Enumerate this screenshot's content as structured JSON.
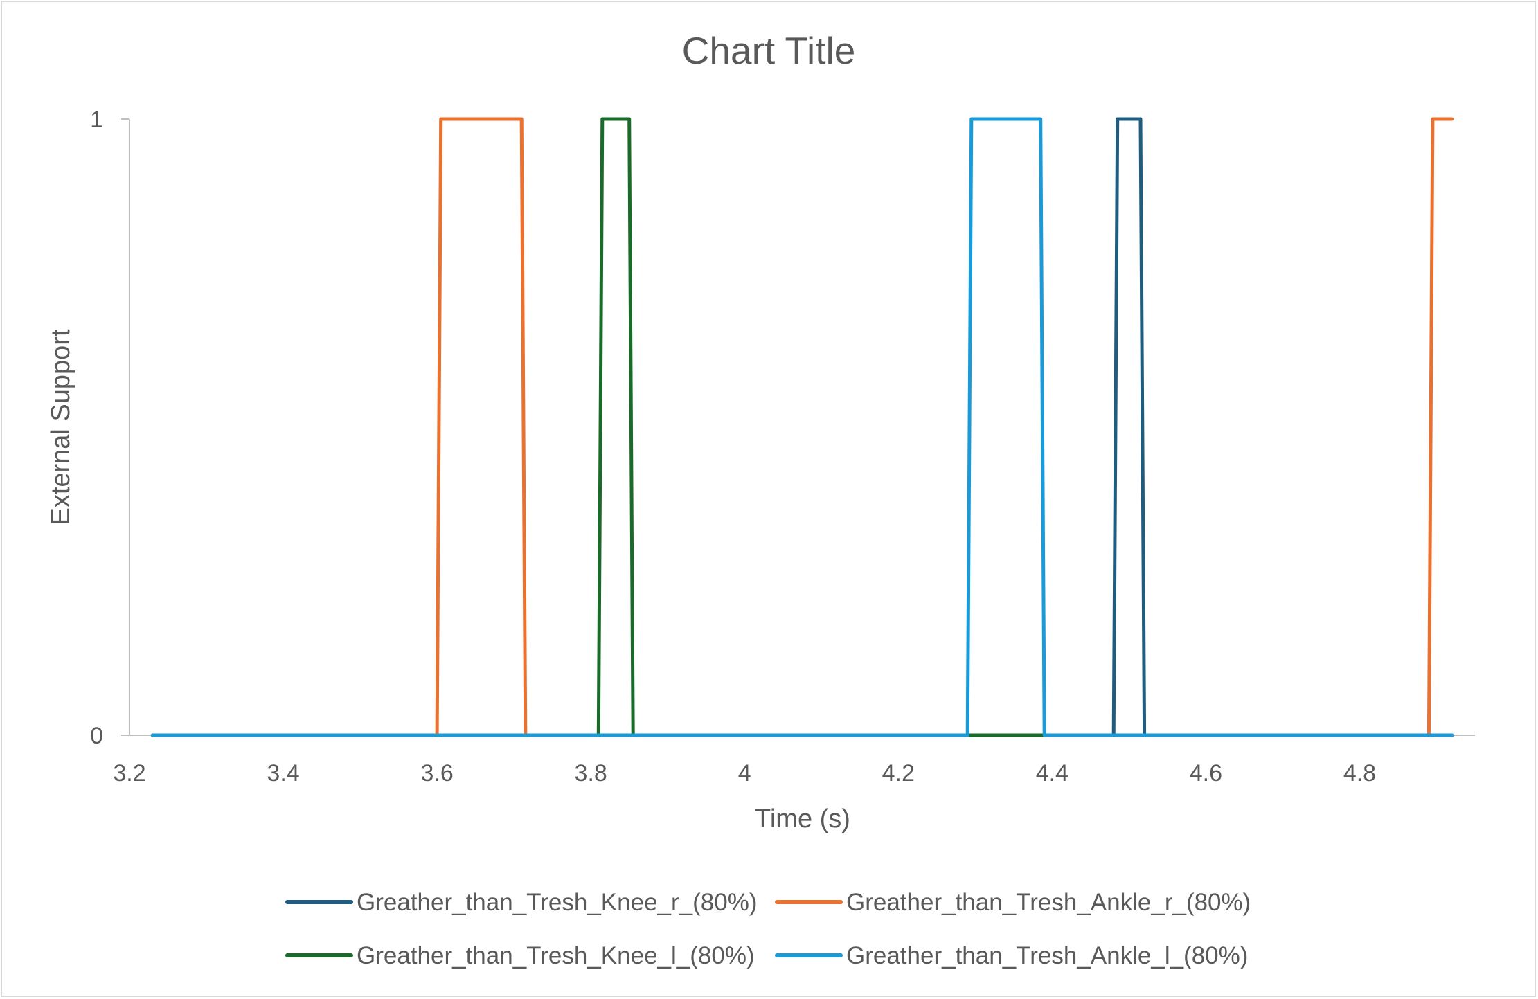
{
  "chart_data": {
    "type": "line",
    "title": "Chart Title",
    "xlabel": "Time (s)",
    "ylabel": "External Support",
    "xlim": [
      3.2,
      4.95
    ],
    "ylim": [
      0,
      1
    ],
    "x_ticks": [
      "3.2",
      "3.4",
      "3.6",
      "3.8",
      "4",
      "4.2",
      "4.4",
      "4.6",
      "4.8"
    ],
    "y_ticks": [
      "0",
      "1"
    ],
    "grid": false,
    "legend_position": "bottom",
    "series": [
      {
        "name": "Greather_than_Tresh_Knee_r_(80%)",
        "color": "#1f5c7e",
        "x": [
          3.23,
          4.48,
          4.485,
          4.515,
          4.52,
          4.92
        ],
        "y": [
          0,
          0,
          1,
          1,
          0,
          0
        ]
      },
      {
        "name": "Greather_than_Tresh_Ankle_r_(80%)",
        "color": "#e97132",
        "x": [
          3.23,
          3.6,
          3.605,
          3.71,
          3.715,
          4.89,
          4.895,
          4.92
        ],
        "y": [
          0,
          0,
          1,
          1,
          0,
          0,
          1,
          1
        ]
      },
      {
        "name": "Greather_than_Tresh_Knee_l_(80%)",
        "color": "#1a6b2a",
        "x": [
          3.23,
          3.81,
          3.815,
          3.85,
          3.855,
          4.29,
          4.39,
          4.92
        ],
        "y": [
          0,
          0,
          1,
          1,
          0,
          0,
          0,
          0
        ]
      },
      {
        "name": "Greather_than_Tresh_Ankle_l_(80%)",
        "color": "#1a9ad6",
        "x": [
          3.23,
          4.29,
          4.295,
          4.385,
          4.39,
          4.92
        ],
        "y": [
          0,
          0,
          1,
          1,
          0,
          0
        ]
      }
    ]
  }
}
